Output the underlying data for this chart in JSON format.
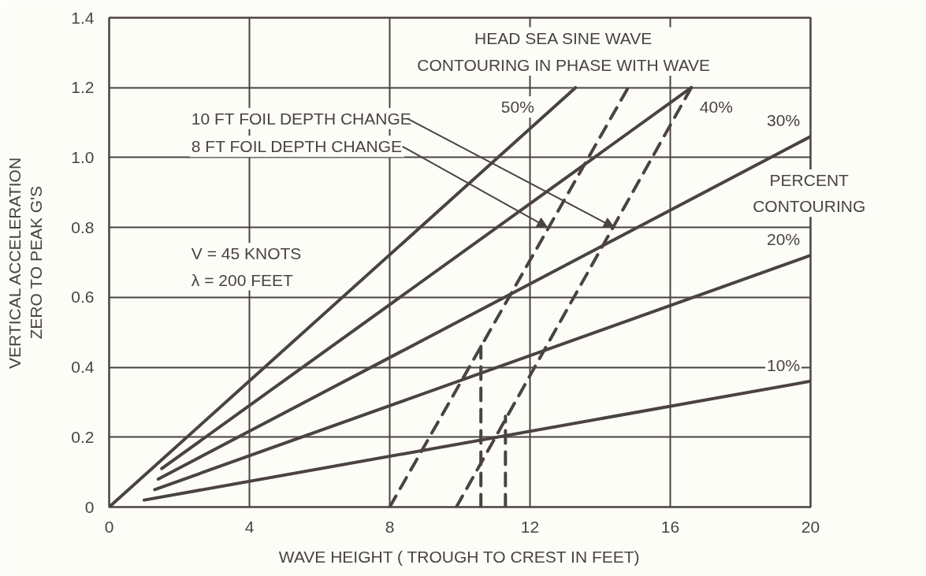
{
  "chart_data": {
    "type": "line",
    "title": "HEAD SEA SINE WAVE\nCONTOURING IN PHASE WITH WAVE",
    "xlabel": "WAVE HEIGHT ( TROUGH TO CREST IN FEET)",
    "ylabel": "VERTICAL ACCELERATION\nZERO TO PEAK G'S",
    "xlim": [
      0,
      20
    ],
    "ylim": [
      0,
      1.4
    ],
    "xticks": [
      0,
      4,
      8,
      12,
      16,
      20
    ],
    "yticks": [
      0,
      0.2,
      0.4,
      0.6,
      0.8,
      {
        "value": 1,
        "label": "1.0"
      },
      1.2,
      1.4
    ],
    "grid": true,
    "line_style": "solid",
    "series": [
      {
        "name": "50%",
        "color": "#4a4340",
        "x": [
          0,
          13.3
        ],
        "values": [
          0,
          1.2
        ]
      },
      {
        "name": "40%",
        "color": "#4a4340",
        "x": [
          1.5,
          16.6
        ],
        "values": [
          0.11,
          1.2
        ]
      },
      {
        "name": "30%",
        "color": "#4a4340",
        "x": [
          1.4,
          20
        ],
        "values": [
          0.08,
          1.06
        ]
      },
      {
        "name": "20%",
        "color": "#4a4340",
        "x": [
          1.3,
          20
        ],
        "values": [
          0.05,
          0.72
        ]
      },
      {
        "name": "10%",
        "color": "#4a4340",
        "x": [
          1,
          20
        ],
        "values": [
          0.02,
          0.36
        ]
      },
      {
        "color": "#4a4340",
        "line_style": "dashed",
        "x": [
          8,
          14.8
        ],
        "values": [
          0,
          1.2
        ]
      },
      {
        "color": "#4a4340",
        "line_style": "dashed",
        "x": [
          10.6,
          10.6
        ],
        "values": [
          0,
          0.46
        ]
      },
      {
        "color": "#4a4340",
        "line_style": "dashed",
        "x": [
          9.9,
          16.6
        ],
        "values": [
          0,
          1.2
        ]
      },
      {
        "color": "#4a4340",
        "line_style": "dashed",
        "x": [
          11.3,
          11.3
        ],
        "values": [
          0,
          0.26
        ]
      }
    ],
    "annotations": [
      {
        "text": "10 FT FOIL DEPTH CHANGE",
        "x": 14.4,
        "y": 0.8
      },
      {
        "text": "8 FT FOIL DEPTH CHANGE",
        "x": 12.5,
        "y": 0.8
      },
      "V = 45 KNOTS\nλ = 200 FEET",
      "PERCENT\nCONTOURING"
    ]
  }
}
